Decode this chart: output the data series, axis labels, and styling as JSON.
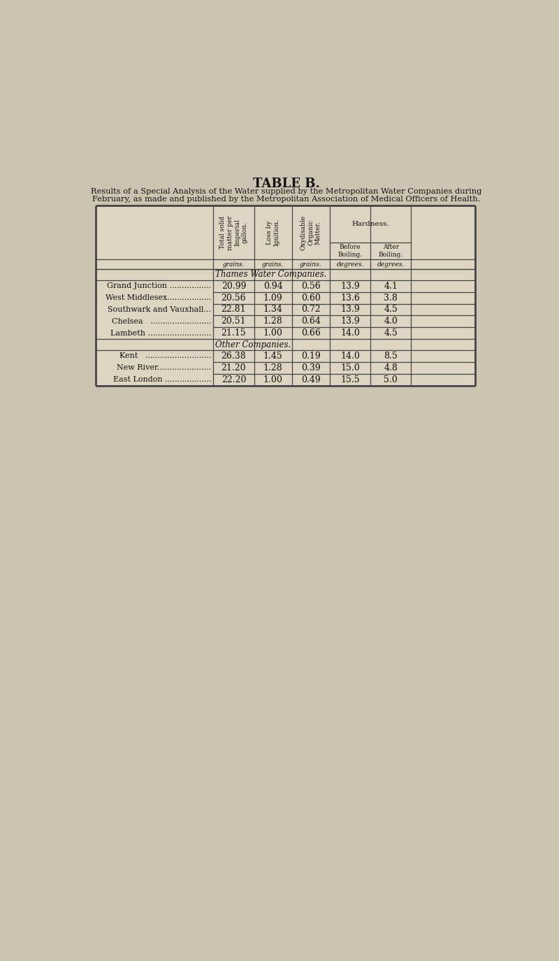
{
  "title": "TABLE B.",
  "subtitle_line1": "Results of a Special Analysis of the Water supplied by the Metropolitan Water Companies during",
  "subtitle_line2": "February, as made and published by the Metropolitan Association of Medical Officers of Health.",
  "col_headers_rotated": [
    "Total solid\nmatter per\nImperial\ngallon.",
    "Loss by\nIgnition.",
    "Oxydisable\nOrganic\nMatter."
  ],
  "hardness_label": "Hardness.",
  "before_boiling": "Before\nBoiling.",
  "after_boiling": "After\nBoiling.",
  "col_units": [
    "grains.",
    "grains.",
    "grains.",
    "degrees.",
    "degrees."
  ],
  "section1_header": "Thames Water Companies.",
  "section1_rows": [
    [
      "Grand Junction .................",
      "20.99",
      "0.94",
      "0.56",
      "13.9",
      "4.1"
    ],
    [
      "West Middlesex..................",
      "20.56",
      "1.09",
      "0.60",
      "13.6",
      "3.8"
    ],
    [
      "Southwark and Vauxhall...",
      "22.81",
      "1.34",
      "0.72",
      "13.9",
      "4.5"
    ],
    [
      "Chelsea   .........................",
      "20.51",
      "1.28",
      "0.64",
      "13.9",
      "4.0"
    ],
    [
      "Lambeth ..........................",
      "21.15",
      "1.00",
      "0.66",
      "14.0",
      "4.5"
    ]
  ],
  "section2_header": "Other Companies.",
  "section2_rows": [
    [
      "Kent   ...........................",
      "26.38",
      "1.45",
      "0.19",
      "14.0",
      "8.5"
    ],
    [
      "New River......................",
      "21.20",
      "1.28",
      "0.39",
      "15.0",
      "4.8"
    ],
    [
      "East London ...................",
      "22.20",
      "1.00",
      "0.49",
      "15.5",
      "5.0"
    ]
  ],
  "bg_color": "#ccc4b0",
  "table_bg": "#ddd5c2",
  "border_color": "#444444",
  "text_color": "#111111"
}
